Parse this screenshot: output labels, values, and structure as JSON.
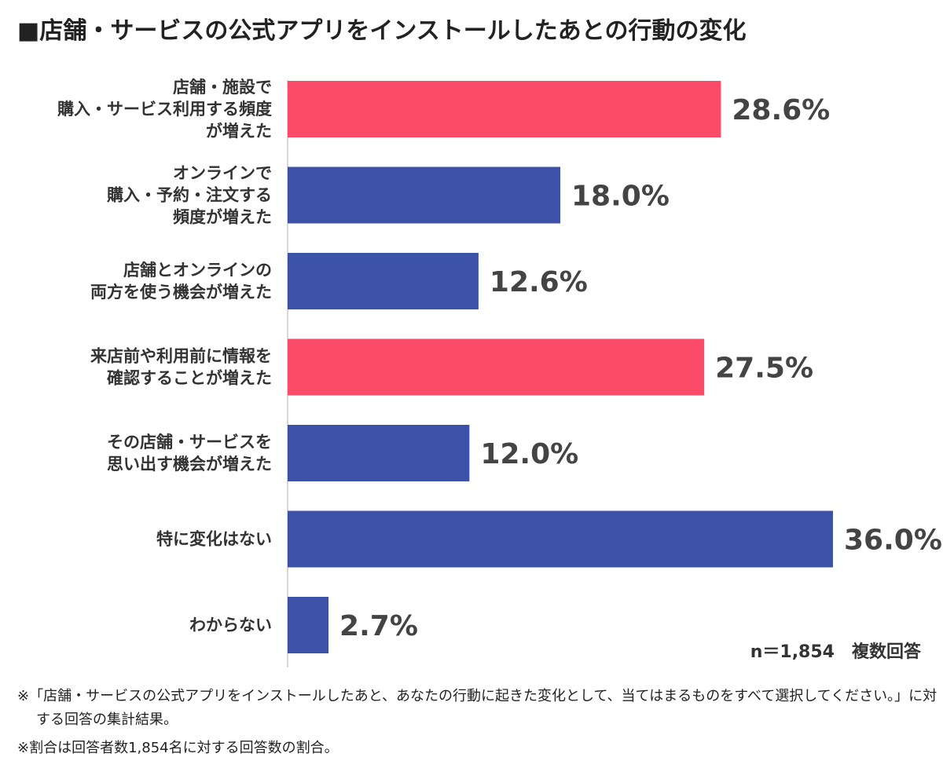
{
  "title": "■店舗・サービスの公式アプリをインストールしたあとの行動の変化",
  "chart_data": {
    "type": "bar",
    "orientation": "horizontal",
    "categories": [
      [
        "店舗・施設で",
        "購入・サービス利用する頻度",
        "が増えた"
      ],
      [
        "オンラインで",
        "購入・予約・注文する",
        "頻度が増えた"
      ],
      [
        "店舗とオンラインの",
        "両方を使う機会が増えた"
      ],
      [
        "来店前や利用前に情報を",
        "確認することが増えた"
      ],
      [
        "その店舗・サービスを",
        "思い出す機会が増えた"
      ],
      [
        "特に変化はない"
      ],
      [
        "わからない"
      ]
    ],
    "values": [
      28.6,
      18.0,
      12.6,
      27.5,
      12.0,
      36.0,
      2.7
    ],
    "value_labels": [
      "28.6%",
      "18.0%",
      "12.6%",
      "27.5%",
      "12.0%",
      "36.0%",
      "2.7%"
    ],
    "highlight": [
      true,
      false,
      false,
      true,
      false,
      false,
      false
    ],
    "xlim": [
      0,
      36.0
    ],
    "grid": false,
    "colors": {
      "highlight": "#fa4b69",
      "default": "#3c51a8"
    }
  },
  "sample_note": "n＝1,854　複数回答",
  "footnotes": [
    "※「店舗・サービスの公式アプリをインストールしたあと、あなたの行動に起きた変化として、当てはまるものをすべて選択してください。」に対する回答の集計結果。",
    "※割合は回答者数1,854名に対する回答数の割合。"
  ]
}
